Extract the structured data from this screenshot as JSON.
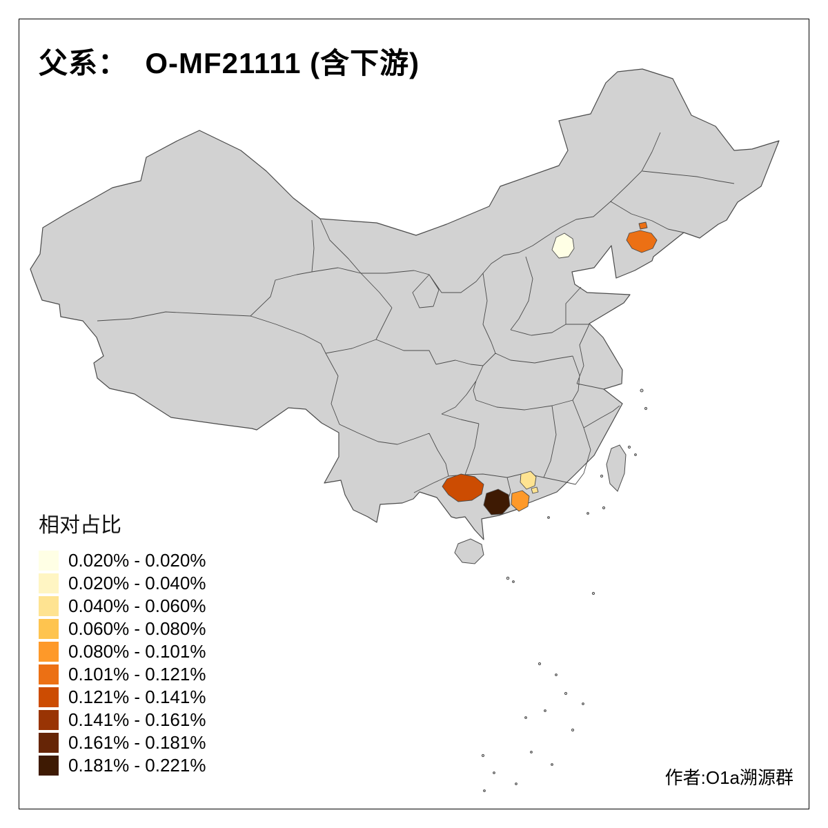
{
  "title": "父系：  O-MF21111 (含下游)",
  "credit": "作者:O1a溯源群",
  "legend": {
    "title": "相对占比",
    "items": [
      {
        "label": "0.020% - 0.020%",
        "color": "#FFFFE5"
      },
      {
        "label": "0.020% - 0.040%",
        "color": "#FFF5C3"
      },
      {
        "label": "0.040% - 0.060%",
        "color": "#FEE391"
      },
      {
        "label": "0.060% - 0.080%",
        "color": "#FEC44F"
      },
      {
        "label": "0.080% - 0.101%",
        "color": "#FE9929"
      },
      {
        "label": "0.101% - 0.121%",
        "color": "#EC7014"
      },
      {
        "label": "0.121% - 0.141%",
        "color": "#CC4C02"
      },
      {
        "label": "0.141% - 0.161%",
        "color": "#993404"
      },
      {
        "label": "0.161% - 0.181%",
        "color": "#662506"
      },
      {
        "label": "0.181% - 0.221%",
        "color": "#3E1A03"
      }
    ]
  },
  "map": {
    "base_fill": "#D2D2D2",
    "border_color": "#4A4A4A",
    "background": "#FFFFFF",
    "regions": [
      {
        "id": "region-north-pale",
        "value_range": "0.020% - 0.020%",
        "color": "#FFFFE5"
      },
      {
        "id": "region-northeast",
        "value_range": "0.101% - 0.121%",
        "color": "#EC7014"
      },
      {
        "id": "region-southwest",
        "value_range": "0.121% - 0.141%",
        "color": "#CC4C02"
      },
      {
        "id": "region-south-dark",
        "value_range": "0.181% - 0.221%",
        "color": "#3E1A03"
      },
      {
        "id": "region-south-orange",
        "value_range": "0.080% - 0.101%",
        "color": "#FE9929"
      },
      {
        "id": "region-south-paleyellow",
        "value_range": "0.040% - 0.060%",
        "color": "#FEE391"
      }
    ]
  }
}
